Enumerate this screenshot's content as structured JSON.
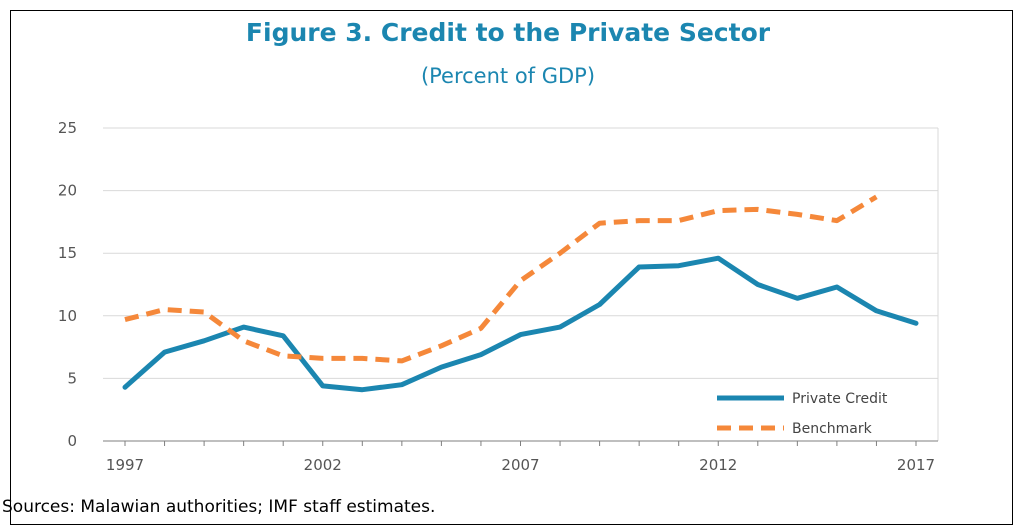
{
  "chart_data": {
    "type": "line",
    "title": "Figure 3. Credit to the Private Sector",
    "subtitle": "(Percent of GDP)",
    "x": [
      1997,
      1998,
      1999,
      2000,
      2001,
      2002,
      2003,
      2004,
      2005,
      2006,
      2007,
      2008,
      2009,
      2010,
      2011,
      2012,
      2013,
      2014,
      2015,
      2016,
      2017
    ],
    "x_tick_labels": [
      "1997",
      "2002",
      "2007",
      "2012",
      "2017"
    ],
    "y_tick_labels": [
      "0",
      "5",
      "10",
      "15",
      "20",
      "25"
    ],
    "ylim": [
      0,
      25
    ],
    "xlim": [
      1997,
      2017
    ],
    "grid": "horizontal",
    "legend_position": "bottom-right",
    "series": [
      {
        "name": "Private Credit",
        "style": "solid",
        "color": "#1b86b0",
        "values": [
          4.3,
          7.1,
          8.0,
          9.1,
          8.4,
          4.4,
          4.1,
          4.5,
          5.9,
          6.9,
          8.5,
          9.1,
          10.9,
          13.9,
          14.0,
          14.6,
          12.5,
          11.4,
          12.3,
          10.4,
          9.4
        ]
      },
      {
        "name": "Benchmark",
        "style": "dashed",
        "color": "#f5883a",
        "values": [
          9.7,
          10.5,
          10.3,
          8.0,
          6.8,
          6.6,
          6.6,
          6.4,
          7.6,
          9.0,
          12.8,
          15.0,
          17.4,
          17.6,
          17.6,
          18.4,
          18.5,
          18.1,
          17.6,
          19.5,
          null
        ]
      }
    ]
  },
  "source_note": "Sources: Malawian authorities; IMF staff estimates."
}
